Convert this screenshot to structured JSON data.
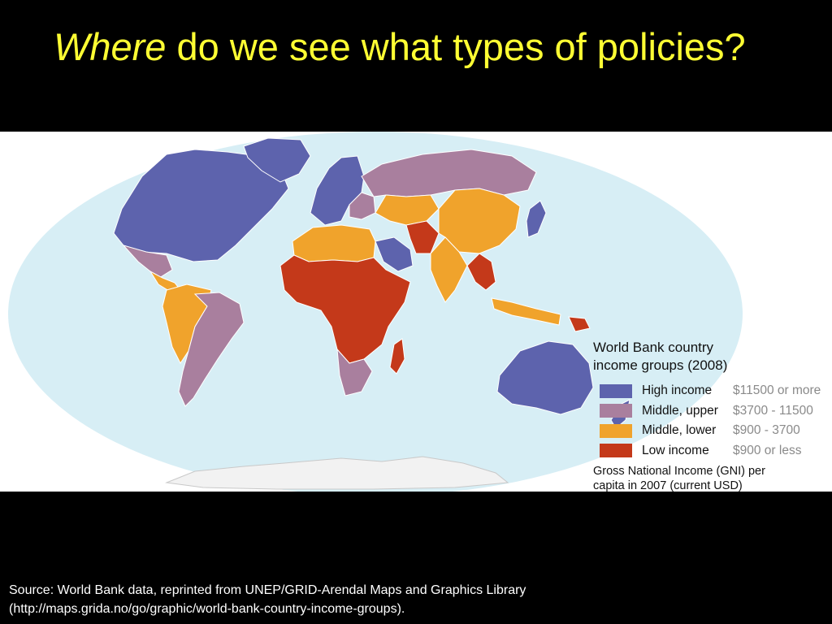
{
  "slide": {
    "title_emphasis": "Where",
    "title_rest": " do we see what types of policies?"
  },
  "map": {
    "legend_title_line1": "World Bank country",
    "legend_title_line2": "income groups (2008)",
    "groups": [
      {
        "label": "High income",
        "range": "$11500 or more",
        "color": "#5d63ad"
      },
      {
        "label": "Middle, upper",
        "range": "$3700 - 11500",
        "color": "#a97f9e"
      },
      {
        "label": "Middle, lower",
        "range": "$900 - 3700",
        "color": "#f0a32c"
      },
      {
        "label": "Low income",
        "range": "$900 or less",
        "color": "#c4391a"
      }
    ],
    "note_line1": "Gross National Income (GNI) per",
    "note_line2": "capita in 2007 (current USD)",
    "ocean_color": "#d7eef5",
    "antarctica_color": "#f2f2f2"
  },
  "source": {
    "line1": "Source: World Bank data, reprinted from UNEP/GRID-Arendal Maps and Graphics Library",
    "line2": "(http://maps.grida.no/go/graphic/world-bank-country-income-groups)."
  }
}
